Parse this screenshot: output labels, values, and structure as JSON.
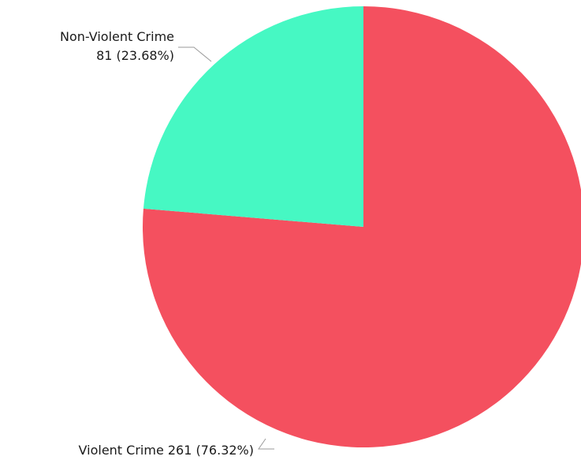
{
  "chart_data": {
    "type": "pie",
    "title": "",
    "slices": [
      {
        "label": "Violent Crime",
        "value": 261,
        "percent": "76.32%",
        "color": "#f4505f"
      },
      {
        "label": "Non-Violent Crime",
        "value": 81,
        "percent": "23.68%",
        "color": "#46f8c3"
      }
    ],
    "labels": {
      "violent_line1": "Violent Crime 261 (76.32%)",
      "nonviolent_line1": "Non-Violent Crime",
      "nonviolent_line2": "81 (23.68%)"
    },
    "start_angle": "top (12 o'clock)",
    "direction": "clockwise",
    "legend": "none"
  }
}
